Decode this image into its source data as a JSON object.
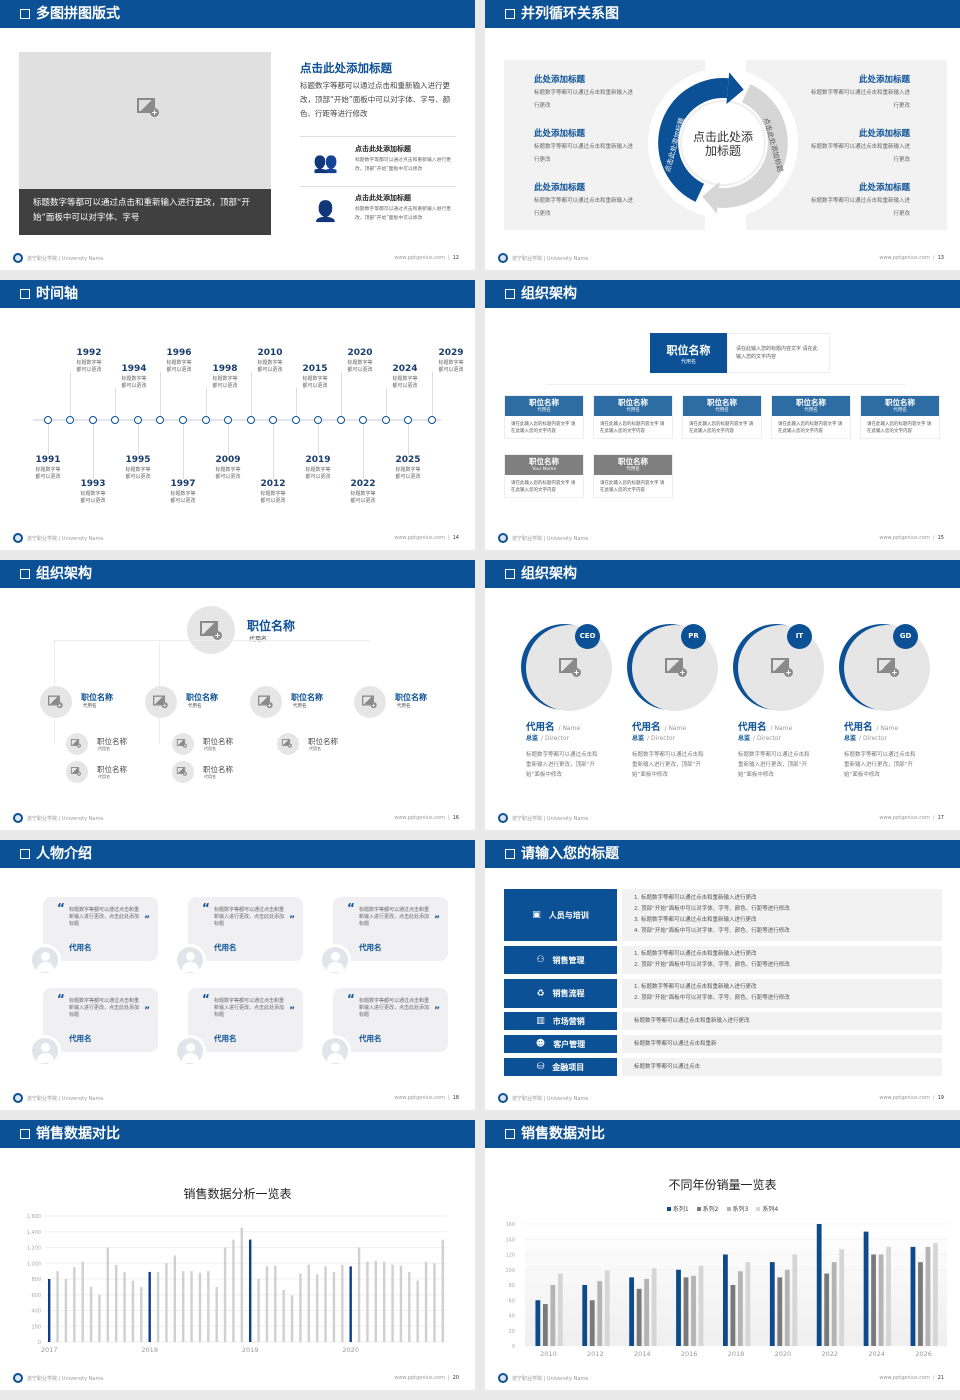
{
  "colors": {
    "primary": "#0c5195",
    "secondary": "#2e6da4",
    "gray_box": "#f2f2f2",
    "placeholder": "#e0e0e0",
    "dark_caption": "#404040",
    "org_gray": "#7f7f7f"
  },
  "footer": {
    "school": "遂宁职业学院 | University Name",
    "site": "www.pptgenius.com"
  },
  "slides": [
    {
      "title": "多图拼图版式",
      "page": "12",
      "image_caption": "标题数字等都可以通过点击和重新输入进行更改，顶部“开始”面板中可以对字体、字号",
      "heading": "点击此处添加标题",
      "paragraph": "标题数字等都可以通过点击和重新输入进行更改，顶部“开始”面板中可以对字体、字号、颜色、行距等进行修改",
      "items": [
        {
          "icon": "users-icon",
          "title": "点击此处添加标题",
          "text": "标题数字等都可以通过点击和重新输入进行更改，顶部“开始”面板中可以修改"
        },
        {
          "icon": "user-icon",
          "title": "点击此处添加标题",
          "text": "标题数字等都可以通过点击和重新输入进行更改，顶部“开始”面板中可以修改"
        }
      ]
    },
    {
      "title": "并列循环关系图",
      "page": "13",
      "center": "点击此处添加标题",
      "arc_left": "点击此处添加标题",
      "arc_right": "点击此处添加标题",
      "left_items": [
        {
          "title": "此处添加标题",
          "text": "标题数字等都可以通过点击和重新输入进行更改"
        },
        {
          "title": "此处添加标题",
          "text": "标题数字等都可以通过点击和重新输入进行更改"
        },
        {
          "title": "此处添加标题",
          "text": "标题数字等都可以通过点击和重新输入进行更改"
        }
      ],
      "right_items": [
        {
          "title": "此处添加标题",
          "text": "标题数字等都可以通过点击和重新输入进行更改"
        },
        {
          "title": "此处添加标题",
          "text": "标题数字等都可以通过点击和重新输入进行更改"
        },
        {
          "title": "此处添加标题",
          "text": "标题数字等都可以通过点击和重新输入进行更改"
        }
      ]
    },
    {
      "title": "时间轴",
      "page": "14",
      "events": [
        {
          "year": "1991",
          "text": "标题数字等都可以更改",
          "side": "bottom"
        },
        {
          "year": "1992",
          "text": "标题数字等都可以更改",
          "side": "top"
        },
        {
          "year": "1993",
          "text": "标题数字等都可以更改",
          "side": "bottom"
        },
        {
          "year": "1994",
          "text": "标题数字等都可以更改",
          "side": "top"
        },
        {
          "year": "1995",
          "text": "标题数字等都可以更改",
          "side": "bottom"
        },
        {
          "year": "1996",
          "text": "标题数字等都可以更改",
          "side": "top"
        },
        {
          "year": "1997",
          "text": "标题数字等都可以更改",
          "side": "bottom"
        },
        {
          "year": "1998",
          "text": "标题数字等都可以更改",
          "side": "top"
        },
        {
          "year": "2009",
          "text": "标题数字等都可以更改",
          "side": "bottom"
        },
        {
          "year": "2010",
          "text": "标题数字等都可以更改",
          "side": "top"
        },
        {
          "year": "2012",
          "text": "标题数字等都可以更改",
          "side": "bottom"
        },
        {
          "year": "2015",
          "text": "标题数字等都可以更改",
          "side": "top"
        },
        {
          "year": "2019",
          "text": "标题数字等都可以更改",
          "side": "bottom"
        },
        {
          "year": "2020",
          "text": "标题数字等都可以更改",
          "side": "top"
        },
        {
          "year": "2022",
          "text": "标题数字等都可以更改",
          "side": "bottom"
        },
        {
          "year": "2024",
          "text": "标题数字等都可以更改",
          "side": "top"
        },
        {
          "year": "2025",
          "text": "标题数字等都可以更改",
          "side": "bottom"
        },
        {
          "year": "2029",
          "text": "标题数字等都可以更改",
          "side": "top"
        }
      ]
    },
    {
      "title": "组织架构",
      "page": "15",
      "top": {
        "name": "职位名称",
        "sub": "代用名",
        "desc": "请在此输入您的标题内容文字 请在此输入您的文字内容"
      },
      "boxes": [
        {
          "name": "职位名称",
          "sub": "代用名",
          "desc": "请在此输入您的标题内容文字 请在此输入您的文字内容",
          "style": "blue"
        },
        {
          "name": "职位名称",
          "sub": "代用名",
          "desc": "请在此输入您的标题内容文字 请在此输入您的文字内容",
          "style": "blue"
        },
        {
          "name": "职位名称",
          "sub": "代用名",
          "desc": "请在此输入您的标题内容文字 请在此输入您的文字内容",
          "style": "blue"
        },
        {
          "name": "职位名称",
          "sub": "代用名",
          "desc": "请在此输入您的标题内容文字 请在此输入您的文字内容",
          "style": "blue"
        },
        {
          "name": "职位名称",
          "sub": "代用名",
          "desc": "请在此输入您的标题内容文字 请在此输入您的文字内容",
          "style": "blue"
        },
        {
          "name": "职位名称",
          "sub": "Your Name",
          "desc": "请在此输入您的标题内容文字 请在此输入您的文字内容",
          "style": "gray"
        },
        {
          "name": "职位名称",
          "sub": "代用名",
          "desc": "请在此输入您的标题内容文字 请在此输入您的文字内容",
          "style": "gray"
        }
      ]
    },
    {
      "title": "组织架构",
      "page": "16",
      "top": {
        "name": "职位名称",
        "sub": "代用名"
      },
      "mid": [
        {
          "name": "职位名称",
          "sub": "代用名"
        },
        {
          "name": "职位名称",
          "sub": "代用名"
        },
        {
          "name": "职位名称",
          "sub": "代用名"
        },
        {
          "name": "职位名称",
          "sub": "代用名"
        }
      ],
      "subs": [
        {
          "name": "职位名称",
          "sub": "代用名"
        },
        {
          "name": "职位名称",
          "sub": "代用名"
        },
        {
          "name": "职位名称",
          "sub": "代用名"
        },
        {
          "name": "职位名称",
          "sub": "代用名"
        },
        {
          "name": "职位名称",
          "sub": "代用名"
        }
      ]
    },
    {
      "title": "组织架构",
      "page": "17",
      "people": [
        {
          "badge": "CEO",
          "name": "代用名",
          "name_en": "/ Name",
          "role": "总监",
          "role_en": "/  Director",
          "text": "标题数字等都可以通过点击和重新输入进行更改，顶部“开始”面板中修改"
        },
        {
          "badge": "PR",
          "name": "代用名",
          "name_en": "/ Name",
          "role": "总监",
          "role_en": "/  Director",
          "text": "标题数字等都可以通过点击和重新输入进行更改，顶部“开始”面板中修改"
        },
        {
          "badge": "IT",
          "name": "代用名",
          "name_en": "/ Name",
          "role": "总监",
          "role_en": "/  Director",
          "text": "标题数字等都可以通过点击和重新输入进行更改，顶部“开始”面板中修改"
        },
        {
          "badge": "GD",
          "name": "代用名",
          "name_en": "/ Name",
          "role": "总监",
          "role_en": "/  Director",
          "text": "标题数字等都可以通过点击和重新输入进行更改，顶部“开始”面板中修改"
        }
      ]
    },
    {
      "title": "人物介绍",
      "page": "18",
      "cards": [
        {
          "quote": "标题数字等都可以通过点击和重新输入进行更改，点击此处添加标题",
          "name": "代用名"
        },
        {
          "quote": "标题数字等都可以通过点击和重新输入进行更改，点击此处添加标题",
          "name": "代用名"
        },
        {
          "quote": "标题数字等都可以通过点击和重新输入进行更改，点击此处添加标题",
          "name": "代用名"
        },
        {
          "quote": "标题数字等都可以通过点击和重新输入进行更改，点击此处添加标题",
          "name": "代用名"
        },
        {
          "quote": "标题数字等都可以通过点击和重新输入进行更改，点击此处添加标题",
          "name": "代用名"
        },
        {
          "quote": "标题数字等都可以通过点击和重新输入进行更改，点击此处添加标题",
          "name": "代用名"
        }
      ]
    },
    {
      "title": "请输入您的标题",
      "page": "19",
      "rows": [
        {
          "icon": "training-icon",
          "label": "人员与培训",
          "lines": [
            "1.   标题数字等都可以通过点击和重新输入进行更改",
            "2.   顶部“开始”面板中可以对字体、字号、颜色、行距等进行修改",
            "3.   标题数字等都可以通过点击和重新输入进行更改",
            "4.   顶部“开始”面板中可以对字体、字号、颜色、行距等进行修改"
          ]
        },
        {
          "icon": "sales-management-icon",
          "label": "销售管理",
          "lines": [
            "1.   标题数字等都可以通过点击和重新输入进行更改",
            "2.   顶部“开始”面板中可以对字体、字号、颜色、行距等进行修改"
          ]
        },
        {
          "icon": "cycle-icon",
          "label": "销售流程",
          "lines": [
            "1.   标题数字等都可以通过点击和重新输入进行更改",
            "2.   顶部“开始”面板中可以对字体、字号、颜色、行距等进行修改"
          ]
        },
        {
          "icon": "bar-chart-icon",
          "label": "市场营销",
          "lines": [
            "标题数字等都可以通过点击和重新输入进行更改"
          ]
        },
        {
          "icon": "customers-icon",
          "label": "客户管理",
          "lines": [
            "标题数字等都可以通过点击和重新"
          ]
        },
        {
          "icon": "finance-icon",
          "label": "金融项目",
          "lines": [
            "标题数字等都可以通过点击"
          ]
        }
      ]
    },
    {
      "title": "销售数据对比",
      "page": "20"
    },
    {
      "title": "销售数据对比",
      "page": "21"
    }
  ],
  "chart_data": [
    {
      "type": "bar",
      "title": "销售数据分析一览表",
      "xlabel": "",
      "ylabel": "",
      "ylim": [
        0,
        1600
      ],
      "yticks": [
        "0",
        "200",
        "400",
        "600",
        "800",
        "1,000",
        "1,200",
        "1,400",
        "1,600"
      ],
      "x_tick_labels": [
        "2017",
        "2018",
        "2019",
        "2020"
      ],
      "grid": true,
      "highlight_color": "#0c3e8a",
      "bar_color": "#d0d0d0",
      "values": [
        800,
        900,
        800,
        950,
        1020,
        700,
        600,
        1200,
        980,
        890,
        780,
        700,
        890,
        890,
        1000,
        1100,
        900,
        900,
        880,
        900,
        700,
        1200,
        1300,
        1450,
        1300,
        800,
        960,
        970,
        660,
        590,
        870,
        980,
        860,
        960,
        890,
        980,
        960,
        1200,
        1020,
        1030,
        1020,
        980,
        970,
        890,
        780,
        1020,
        1000,
        1300
      ],
      "highlighted_indices": [
        0,
        12,
        24,
        36
      ]
    },
    {
      "type": "bar",
      "title": "不同年份销量一览表",
      "xlabel": "",
      "ylabel": "",
      "ylim": [
        0,
        160
      ],
      "yticks": [
        "0",
        "20",
        "40",
        "60",
        "80",
        "100",
        "120",
        "140",
        "160"
      ],
      "grid": true,
      "legend": "top",
      "categories": [
        "2010",
        "2012",
        "2014",
        "2016",
        "2018",
        "2020",
        "2022",
        "2024",
        "2026"
      ],
      "series": [
        {
          "name": "系列1",
          "color": "#0c4a8a",
          "values": [
            60,
            80,
            90,
            100,
            120,
            110,
            160,
            150,
            130
          ]
        },
        {
          "name": "系列2",
          "color": "#7a7a7a",
          "values": [
            55,
            60,
            75,
            90,
            80,
            90,
            95,
            120,
            110
          ]
        },
        {
          "name": "系列3",
          "color": "#b4b4b4",
          "values": [
            80,
            85,
            88,
            92,
            98,
            100,
            110,
            120,
            130
          ]
        },
        {
          "name": "系列4",
          "color": "#d6d6d6",
          "values": [
            95,
            99,
            102,
            105,
            110,
            120,
            127,
            130,
            135
          ]
        }
      ]
    }
  ]
}
